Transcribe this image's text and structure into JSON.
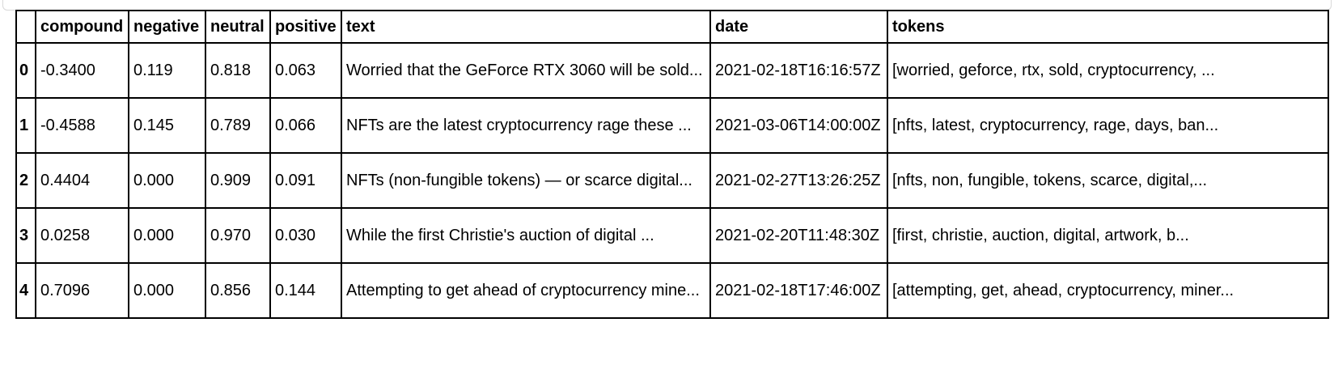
{
  "table": {
    "columns": [
      "",
      "compound",
      "negative",
      "neutral",
      "positive",
      "text",
      "date",
      "tokens"
    ],
    "rows": [
      {
        "index": "0",
        "compound": "-0.3400",
        "negative": "0.119",
        "neutral": "0.818",
        "positive": "0.063",
        "text": "Worried that the GeForce RTX 3060 will be sold...",
        "date": "2021-02-18T16:16:57Z",
        "tokens": "[worried, geforce, rtx, sold, cryptocurrency, ..."
      },
      {
        "index": "1",
        "compound": "-0.4588",
        "negative": "0.145",
        "neutral": "0.789",
        "positive": "0.066",
        "text": "NFTs are the latest cryptocurrency rage these ...",
        "date": "2021-03-06T14:00:00Z",
        "tokens": "[nfts, latest, cryptocurrency, rage, days, ban..."
      },
      {
        "index": "2",
        "compound": "0.4404",
        "negative": "0.000",
        "neutral": "0.909",
        "positive": "0.091",
        "text": "NFTs (non-fungible tokens) — or scarce digital...",
        "date": "2021-02-27T13:26:25Z",
        "tokens": "[nfts, non, fungible, tokens, scarce, digital,..."
      },
      {
        "index": "3",
        "compound": "0.0258",
        "negative": "0.000",
        "neutral": "0.970",
        "positive": "0.030",
        "text": "While the first Christie's auction of digital ...",
        "date": "2021-02-20T11:48:30Z",
        "tokens": "[first, christie, auction, digital, artwork, b..."
      },
      {
        "index": "4",
        "compound": "0.7096",
        "negative": "0.000",
        "neutral": "0.856",
        "positive": "0.144",
        "text": "Attempting to get ahead of cryptocurrency mine...",
        "date": "2021-02-18T17:46:00Z",
        "tokens": "[attempting, get, ahead, cryptocurrency, miner..."
      }
    ]
  }
}
